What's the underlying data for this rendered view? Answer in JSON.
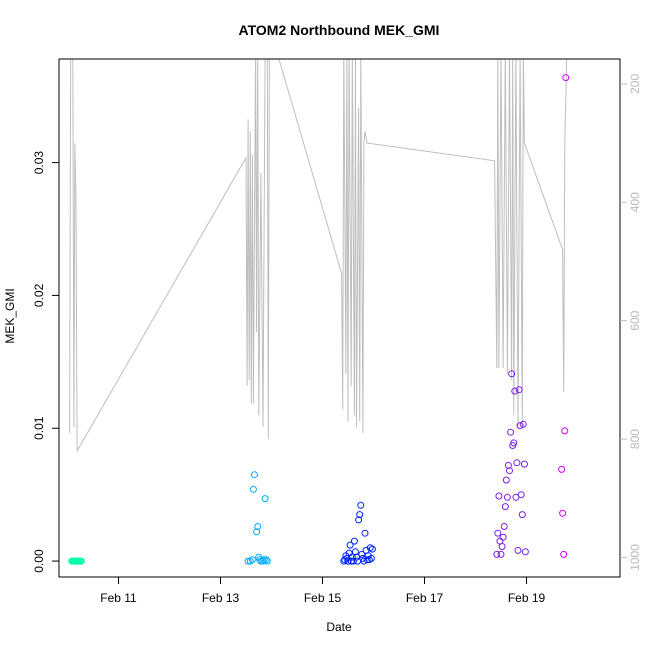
{
  "chart_data": {
    "type": "scatter",
    "title": "ATOM2 Northbound MEK_GMI",
    "xlabel": "Date",
    "ylabel": "MEK_GMI",
    "xlim": [
      "2018-02-09T20:00",
      "2018-02-20T20:00"
    ],
    "ylim": [
      -0.0012,
      0.0378
    ],
    "x_ticks": [
      {
        "label": "Feb 11",
        "value": "2018-02-11T00:00"
      },
      {
        "label": "Feb 13",
        "value": "2018-02-13T00:00"
      },
      {
        "label": "Feb 15",
        "value": "2018-02-15T00:00"
      },
      {
        "label": "Feb 17",
        "value": "2018-02-17T00:00"
      },
      {
        "label": "Feb 19",
        "value": "2018-02-19T00:00"
      }
    ],
    "y_ticks": [
      0.0,
      0.01,
      0.02,
      0.03
    ],
    "y_tick_labels": [
      "0.00",
      "0.01",
      "0.02",
      "0.03"
    ],
    "right_axis": {
      "ylim": [
        1033,
        158
      ],
      "ticks": [
        200,
        400,
        600,
        800,
        1000
      ],
      "tick_labels": [
        "200",
        "400",
        "600",
        "800",
        "1000"
      ],
      "color": "#bebebe"
    },
    "series": [
      {
        "color": "#00FFAA",
        "points": [
          [
            "2018-02-10T02:00",
            0.0
          ],
          [
            "2018-02-10T02:30",
            0.0
          ],
          [
            "2018-02-10T03:00",
            0.0
          ],
          [
            "2018-02-10T03:30",
            0.0
          ],
          [
            "2018-02-10T04:00",
            0.0
          ],
          [
            "2018-02-10T04:30",
            0.0
          ],
          [
            "2018-02-10T05:00",
            0.0
          ],
          [
            "2018-02-10T05:30",
            0.0
          ],
          [
            "2018-02-10T06:00",
            0.0
          ],
          [
            "2018-02-10T06:30",
            0.0
          ]
        ]
      },
      {
        "color": "#00AAFF",
        "points": [
          [
            "2018-02-13T13:00",
            0.0
          ],
          [
            "2018-02-13T14:00",
            0.0
          ],
          [
            "2018-02-13T15:00",
            0.0001
          ],
          [
            "2018-02-13T15:30",
            0.0054
          ],
          [
            "2018-02-13T16:00",
            0.0065
          ],
          [
            "2018-02-13T17:00",
            0.0022
          ],
          [
            "2018-02-13T17:30",
            0.0026
          ],
          [
            "2018-02-13T18:00",
            0.0003
          ],
          [
            "2018-02-13T18:30",
            0.0001
          ],
          [
            "2018-02-13T19:00",
            0.0
          ],
          [
            "2018-02-13T20:00",
            0.0
          ],
          [
            "2018-02-13T20:30",
            0.0001
          ],
          [
            "2018-02-13T21:00",
            0.0047
          ],
          [
            "2018-02-13T21:30",
            0.0001
          ],
          [
            "2018-02-13T22:00",
            0.0
          ]
        ]
      },
      {
        "color": "#0022FF",
        "points": [
          [
            "2018-02-15T10:00",
            0.0
          ],
          [
            "2018-02-15T10:30",
            0.0001
          ],
          [
            "2018-02-15T11:00",
            0.0004
          ],
          [
            "2018-02-15T11:30",
            0.0002
          ],
          [
            "2018-02-15T12:00",
            0.0
          ],
          [
            "2018-02-15T12:30",
            0.0006
          ],
          [
            "2018-02-15T13:00",
            0.0012
          ],
          [
            "2018-02-15T13:30",
            0.0
          ],
          [
            "2018-02-15T14:00",
            0.0003
          ],
          [
            "2018-02-15T14:30",
            0.0
          ],
          [
            "2018-02-15T15:00",
            0.0015
          ],
          [
            "2018-02-15T15:30",
            0.0007
          ],
          [
            "2018-02-15T16:00",
            0.0003
          ],
          [
            "2018-02-15T16:30",
            0.0
          ],
          [
            "2018-02-15T17:00",
            0.0031
          ],
          [
            "2018-02-15T17:30",
            0.0035
          ],
          [
            "2018-02-15T18:00",
            0.0042
          ],
          [
            "2018-02-15T18:30",
            0.0005
          ],
          [
            "2018-02-15T19:00",
            0.0002
          ],
          [
            "2018-02-15T19:30",
            0.0
          ],
          [
            "2018-02-15T20:00",
            0.0021
          ],
          [
            "2018-02-15T20:30",
            0.0008
          ],
          [
            "2018-02-15T21:00",
            0.0001
          ],
          [
            "2018-02-15T21:30",
            0.0004
          ],
          [
            "2018-02-15T22:00",
            0.0001
          ],
          [
            "2018-02-15T22:30",
            0.001
          ],
          [
            "2018-02-15T23:00",
            0.0002
          ],
          [
            "2018-02-15T23:30",
            0.0009
          ]
        ]
      },
      {
        "color": "#7A1FE8",
        "points": [
          [
            "2018-02-18T10:00",
            0.0005
          ],
          [
            "2018-02-18T10:30",
            0.0021
          ],
          [
            "2018-02-18T11:00",
            0.0049
          ],
          [
            "2018-02-18T11:30",
            0.0015
          ],
          [
            "2018-02-18T12:00",
            0.0005
          ],
          [
            "2018-02-18T12:30",
            0.0011
          ],
          [
            "2018-02-18T13:00",
            0.0018
          ],
          [
            "2018-02-18T13:30",
            0.0026
          ],
          [
            "2018-02-18T14:00",
            0.0041
          ],
          [
            "2018-02-18T14:30",
            0.0061
          ],
          [
            "2018-02-18T15:00",
            0.0048
          ],
          [
            "2018-02-18T15:30",
            0.0072
          ],
          [
            "2018-02-18T16:00",
            0.0068
          ],
          [
            "2018-02-18T16:30",
            0.0097
          ],
          [
            "2018-02-18T17:00",
            0.0141
          ],
          [
            "2018-02-18T17:30",
            0.0087
          ],
          [
            "2018-02-18T18:00",
            0.0089
          ],
          [
            "2018-02-18T18:30",
            0.0128
          ],
          [
            "2018-02-18T19:00",
            0.0048
          ],
          [
            "2018-02-18T19:30",
            0.0074
          ],
          [
            "2018-02-18T20:00",
            0.0008
          ],
          [
            "2018-02-18T20:30",
            0.0129
          ],
          [
            "2018-02-18T21:00",
            0.0102
          ],
          [
            "2018-02-18T21:30",
            0.005
          ],
          [
            "2018-02-18T22:00",
            0.0035
          ],
          [
            "2018-02-18T22:30",
            0.0103
          ],
          [
            "2018-02-18T23:00",
            0.0073
          ],
          [
            "2018-02-18T23:30",
            0.0007
          ]
        ]
      },
      {
        "color": "#D400FF",
        "points": [
          [
            "2018-02-19T16:30",
            0.0069
          ],
          [
            "2018-02-19T17:00",
            0.0036
          ],
          [
            "2018-02-19T17:30",
            0.0005
          ],
          [
            "2018-02-19T18:00",
            0.0098
          ],
          [
            "2018-02-19T18:30",
            0.0364
          ]
        ]
      }
    ],
    "line": {
      "color": "#bebebe",
      "axis": "right",
      "points": [
        [
          "2018-02-10T01:00",
          790
        ],
        [
          "2018-02-10T01:30",
          140
        ],
        [
          "2018-02-10T02:30",
          140
        ],
        [
          "2018-02-10T03:00",
          780
        ],
        [
          "2018-02-10T03:30",
          300
        ],
        [
          "2018-02-10T04:00",
          400
        ],
        [
          "2018-02-10T04:30",
          820
        ],
        [
          "2018-02-13T12:00",
          325
        ],
        [
          "2018-02-13T12:30",
          710
        ],
        [
          "2018-02-13T13:00",
          260
        ],
        [
          "2018-02-13T13:30",
          700
        ],
        [
          "2018-02-13T14:00",
          280
        ],
        [
          "2018-02-13T14:30",
          740
        ],
        [
          "2018-02-13T15:00",
          320
        ],
        [
          "2018-02-13T15:30",
          740
        ],
        [
          "2018-02-13T16:30",
          140
        ],
        [
          "2018-02-13T17:00",
          620
        ],
        [
          "2018-02-13T17:30",
          140
        ],
        [
          "2018-02-13T18:00",
          760
        ],
        [
          "2018-02-13T19:00",
          350
        ],
        [
          "2018-02-13T20:00",
          780
        ],
        [
          "2018-02-13T21:00",
          140
        ],
        [
          "2018-02-13T22:00",
          140
        ],
        [
          "2018-02-13T22:30",
          800
        ],
        [
          "2018-02-13T23:00",
          140
        ],
        [
          "2018-02-14T02:00",
          140
        ],
        [
          "2018-02-15T09:00",
          520
        ],
        [
          "2018-02-15T09:30",
          750
        ],
        [
          "2018-02-15T10:00",
          140
        ],
        [
          "2018-02-15T11:00",
          690
        ],
        [
          "2018-02-15T11:30",
          140
        ],
        [
          "2018-02-15T12:00",
          770
        ],
        [
          "2018-02-15T12:30",
          140
        ],
        [
          "2018-02-15T13:30",
          710
        ],
        [
          "2018-02-15T14:00",
          140
        ],
        [
          "2018-02-15T15:00",
          760
        ],
        [
          "2018-02-15T15:30",
          140
        ],
        [
          "2018-02-15T16:00",
          780
        ],
        [
          "2018-02-15T17:00",
          240
        ],
        [
          "2018-02-15T17:30",
          770
        ],
        [
          "2018-02-15T18:00",
          140
        ],
        [
          "2018-02-15T19:00",
          790
        ],
        [
          "2018-02-15T19:30",
          300
        ],
        [
          "2018-02-15T20:00",
          280
        ],
        [
          "2018-02-15T21:00",
          300
        ],
        [
          "2018-02-18T09:00",
          330
        ],
        [
          "2018-02-18T10:00",
          680
        ],
        [
          "2018-02-18T10:30",
          140
        ],
        [
          "2018-02-18T11:00",
          680
        ],
        [
          "2018-02-18T12:00",
          140
        ],
        [
          "2018-02-18T13:00",
          680
        ],
        [
          "2018-02-18T14:00",
          140
        ],
        [
          "2018-02-18T15:00",
          690
        ],
        [
          "2018-02-18T16:00",
          140
        ],
        [
          "2018-02-18T17:00",
          700
        ],
        [
          "2018-02-18T17:30",
          140
        ],
        [
          "2018-02-18T18:00",
          760
        ],
        [
          "2018-02-18T19:00",
          140
        ],
        [
          "2018-02-18T20:00",
          780
        ],
        [
          "2018-02-18T21:00",
          140
        ],
        [
          "2018-02-18T22:00",
          780
        ],
        [
          "2018-02-18T22:30",
          140
        ],
        [
          "2018-02-18T23:00",
          300
        ],
        [
          "2018-02-19T17:00",
          480
        ],
        [
          "2018-02-19T17:30",
          720
        ],
        [
          "2018-02-19T18:00",
          300
        ],
        [
          "2018-02-19T19:00",
          140
        ]
      ]
    },
    "grid": false,
    "legend": "none"
  }
}
